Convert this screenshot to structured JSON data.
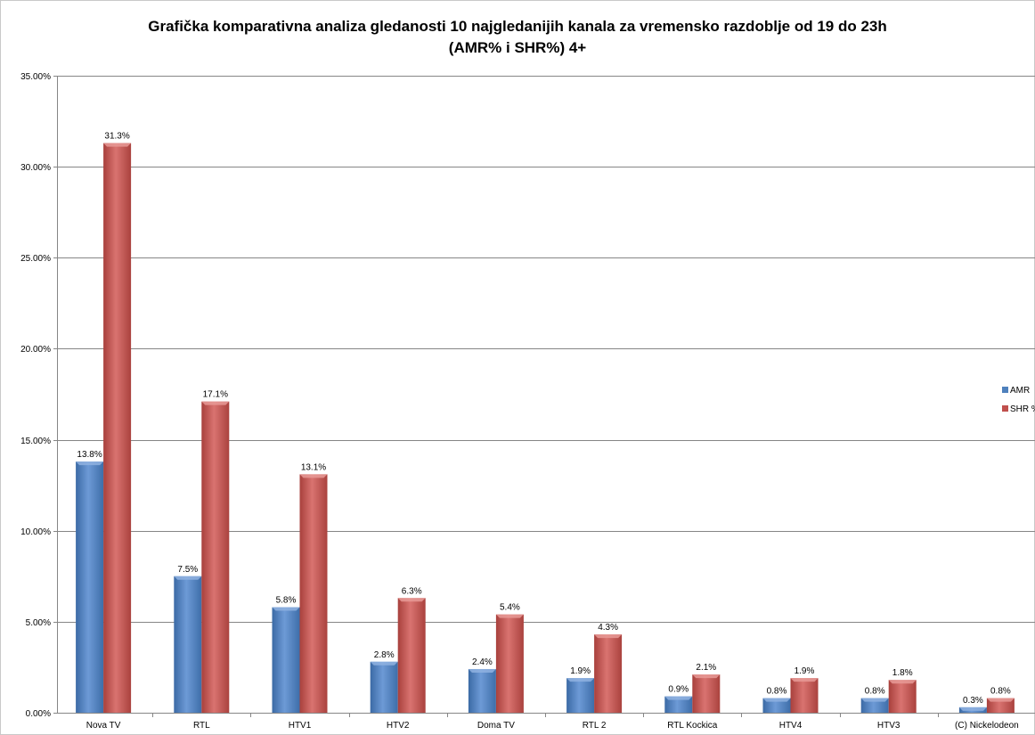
{
  "chart_data": {
    "type": "bar",
    "title_line1": "Grafička komparativna analiza gledanosti 10 najgledanijih kanala za vremensko razdoblje od 19 do 23h",
    "title_line2": "(AMR% i SHR%) 4+",
    "categories": [
      "Nova TV",
      "RTL",
      "HTV1",
      "HTV2",
      "Doma TV",
      "RTL 2",
      "RTL Kockica",
      "HTV4",
      "HTV3",
      "(C) Nickelodeon"
    ],
    "series": [
      {
        "name": "AMR",
        "color": "#4f81bd",
        "values": [
          13.8,
          7.5,
          5.8,
          2.8,
          2.4,
          1.9,
          0.9,
          0.8,
          0.8,
          0.3
        ],
        "labels": [
          "13.8%",
          "7.5%",
          "5.8%",
          "2.8%",
          "2.4%",
          "1.9%",
          "0.9%",
          "0.8%",
          "0.8%",
          "0.3%"
        ]
      },
      {
        "name": "SHR %",
        "color": "#c0504d",
        "values": [
          31.3,
          17.1,
          13.1,
          6.3,
          5.4,
          4.3,
          2.1,
          1.9,
          1.8,
          0.8
        ],
        "labels": [
          "31.3%",
          "17.1%",
          "13.1%",
          "6.3%",
          "5.4%",
          "4.3%",
          "2.1%",
          "1.9%",
          "1.8%",
          "0.8%"
        ]
      }
    ],
    "ylim": [
      0,
      35
    ],
    "yticks": [
      "0.00%",
      "5.00%",
      "10.00%",
      "15.00%",
      "20.00%",
      "25.00%",
      "30.00%",
      "35.00%"
    ],
    "xlabel": "",
    "ylabel": "",
    "grid": true,
    "legend_position": "right"
  }
}
